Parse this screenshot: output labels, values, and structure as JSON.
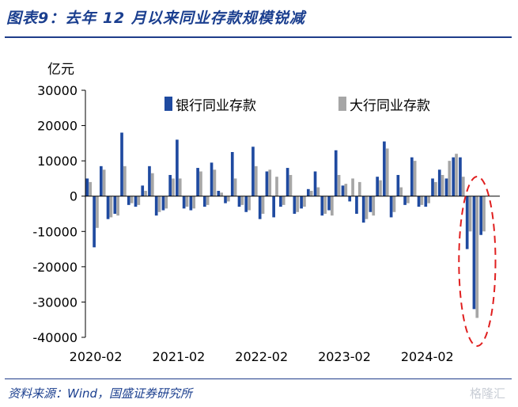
{
  "header": {
    "title": "图表9：去年 12 月以来同业存款规模锐减"
  },
  "footer": {
    "source": "资料来源：Wind，国盛证券研究所",
    "watermark": "格隆汇"
  },
  "colors": {
    "series_big_banks": "#a6a6a6",
    "series_all_banks": "#1f4aa0",
    "highlight": "#e01f1f",
    "rule": "#1f3d8a"
  },
  "chart_data": {
    "type": "bar",
    "unit_label": "亿元",
    "ylim": [
      -40000,
      30000
    ],
    "yticks": [
      30000,
      20000,
      10000,
      0,
      -10000,
      -20000,
      -30000,
      -40000
    ],
    "xtick_labels": [
      "2020-02",
      "2021-02",
      "2022-02",
      "2023-02",
      "2024-02"
    ],
    "x_start": "2020-01",
    "x_end": "2024-12",
    "legend_position": "top",
    "grid": false,
    "series": [
      {
        "name": "银行同业存款",
        "values": [
          5000,
          -14500,
          8500,
          -6500,
          -5000,
          18000,
          -2500,
          -3000,
          3000,
          8500,
          -5500,
          -4000,
          6000,
          16000,
          -3500,
          -4000,
          8000,
          -3000,
          9500,
          1500,
          -2000,
          12500,
          -3000,
          -4500,
          14000,
          -6500,
          7000,
          -6000,
          -3000,
          8000,
          -5000,
          -3500,
          2000,
          7000,
          -5500,
          -4000,
          13000,
          3000,
          -1500,
          -5000,
          -7500,
          -4500,
          5500,
          15500,
          -6000,
          6000,
          -2500,
          11000,
          -3000,
          -3000,
          5000,
          7500,
          5000,
          11000,
          11000,
          -15000,
          -32000,
          -11000
        ]
      },
      {
        "name": "大行同业存款",
        "values": [
          4000,
          -9000,
          7500,
          -6000,
          -5500,
          8500,
          -2000,
          -2500,
          1500,
          6500,
          -4500,
          -3500,
          5000,
          5000,
          -3000,
          -3500,
          7000,
          -2500,
          7500,
          1000,
          -1500,
          5000,
          -2500,
          -4000,
          8500,
          -5000,
          7500,
          5500,
          -2500,
          6000,
          -4500,
          -3000,
          1500,
          2500,
          -5000,
          -5500,
          6000,
          3500,
          5000,
          4000,
          -6500,
          -5500,
          4500,
          13500,
          -4500,
          2500,
          -2000,
          10000,
          -2500,
          -2000,
          4000,
          6000,
          10000,
          12000,
          5500,
          -10000,
          -34500,
          -10000
        ]
      }
    ]
  }
}
